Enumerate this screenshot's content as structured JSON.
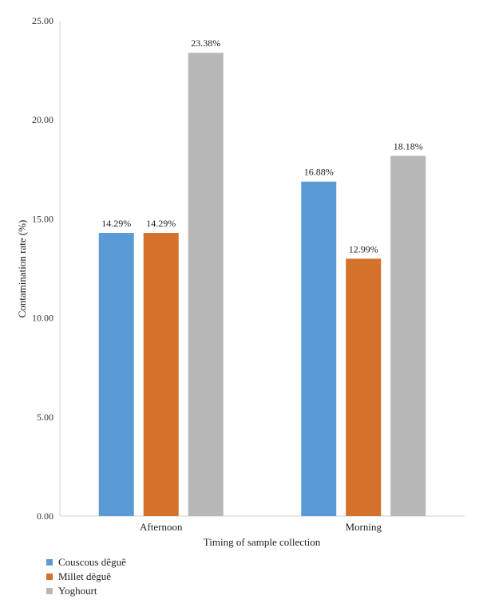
{
  "chart_data": {
    "type": "bar",
    "categories": [
      "Afternoon",
      "Morning"
    ],
    "series": [
      {
        "name": "Couscous dêguê",
        "color": "#5b9bd5",
        "values": [
          14.29,
          16.88
        ],
        "labels": [
          "14.29%",
          "16.88%"
        ]
      },
      {
        "name": "Millet dêguê",
        "color": "#d4712a",
        "values": [
          14.29,
          12.99
        ],
        "labels": [
          "14.29%",
          "12.99%"
        ]
      },
      {
        "name": "Yoghourt",
        "color": "#b7b7b7",
        "values": [
          23.38,
          18.18
        ],
        "labels": [
          "23.38%",
          "18.18%"
        ]
      }
    ],
    "xlabel": "Timing of sample collection",
    "ylabel": "Contamination rate (%)",
    "ylim": [
      0,
      25
    ],
    "yticks": [
      "0.00",
      "5.00",
      "10.00",
      "15.00",
      "20.00",
      "25.00"
    ],
    "grid": false,
    "legend_position": "bottom-left"
  }
}
